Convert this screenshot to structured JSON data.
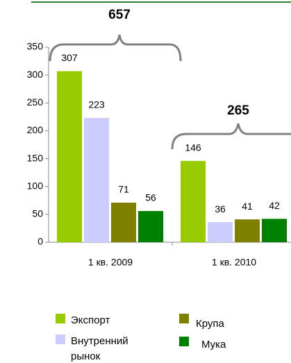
{
  "chart_data": {
    "type": "bar",
    "categories": [
      "1 кв. 2009",
      "1 кв. 2010"
    ],
    "series": [
      {
        "name": "Экспорт",
        "color": "#99cc00",
        "values": [
          307,
          146
        ]
      },
      {
        "name": "Внутренний рынок",
        "color": "#ccccff",
        "values": [
          223,
          36
        ]
      },
      {
        "name": "Крупа",
        "color": "#808000",
        "values": [
          71,
          41
        ]
      },
      {
        "name": "Мука",
        "color": "#008000",
        "values": [
          56,
          42
        ]
      }
    ],
    "group_totals": [
      657,
      265
    ],
    "ylim": [
      0,
      350
    ],
    "yticks": [
      0,
      50,
      100,
      150,
      200,
      250,
      300,
      350
    ]
  }
}
